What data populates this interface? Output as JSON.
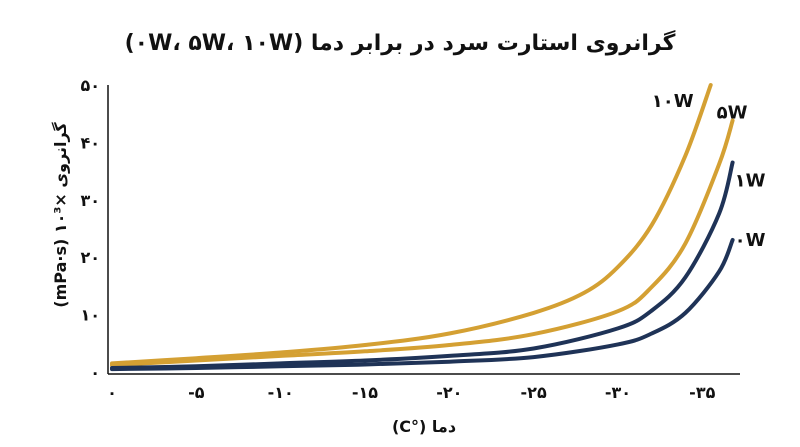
{
  "chart_data": {
    "type": "line",
    "title": "گرانروی استارت سرد در برابر دما (۰W، ۵W، ۱۰W)",
    "xlabel": "دما (°C)",
    "ylabel": "گرانروی ×۱۰³ (mPa·s)",
    "xlim": [
      0,
      -37
    ],
    "ylim": [
      0,
      50
    ],
    "x_ticks": [
      0,
      -5,
      -10,
      -15,
      -20,
      -25,
      -30,
      -35
    ],
    "x_tick_labels": [
      "۰",
      "-۵",
      "-۱۰",
      "-۱۵",
      "-۲۰",
      "-۲۵",
      "-۳۰",
      "-۳۵"
    ],
    "y_ticks": [
      0,
      10,
      20,
      30,
      40,
      50
    ],
    "y_tick_labels": [
      "۰",
      "۱۰",
      "۲۰",
      "۳۰",
      "۴۰",
      "۵۰"
    ],
    "grid": false,
    "legend": "end-of-line labels",
    "series": [
      {
        "name": "۱۰W",
        "color": "#D4A033",
        "x": [
          0,
          -5,
          -10,
          -15,
          -20,
          -25,
          -28,
          -30,
          -32,
          -34,
          -35.5
        ],
        "values": [
          1.5,
          2.4,
          3.4,
          4.7,
          6.7,
          10.3,
          13.8,
          18.3,
          25.6,
          37.7,
          50.0
        ]
      },
      {
        "name": "۵W",
        "color": "#D4A033",
        "x": [
          0,
          -5,
          -10,
          -15,
          -20,
          -25,
          -30,
          -32,
          -34,
          -36,
          -36.8
        ],
        "values": [
          1.2,
          2.0,
          2.8,
          3.6,
          4.7,
          6.6,
          10.6,
          14.8,
          22.4,
          36.2,
          43.8
        ]
      },
      {
        "name": "۱W",
        "color": "#1F3357",
        "x": [
          0,
          -5,
          -10,
          -15,
          -20,
          -25,
          -30,
          -32,
          -34,
          -36,
          -36.8
        ],
        "values": [
          0.7,
          1.0,
          1.5,
          2.0,
          2.8,
          4.1,
          7.6,
          10.7,
          16.5,
          27.6,
          36.5
        ]
      },
      {
        "name": "۰W",
        "color": "#1F3357",
        "x": [
          0,
          -5,
          -10,
          -15,
          -20,
          -25,
          -30,
          -32,
          -34,
          -36,
          -36.8
        ],
        "values": [
          0.5,
          0.7,
          1.0,
          1.3,
          1.8,
          2.6,
          4.8,
          6.7,
          10.3,
          17.5,
          23.0
        ]
      }
    ]
  }
}
